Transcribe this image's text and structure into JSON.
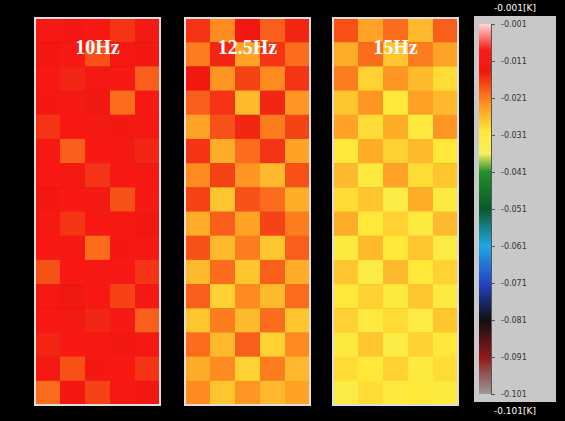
{
  "chart_data": {
    "type": "heatmap",
    "panels": [
      {
        "title": "10Hz",
        "cells": [
          [
            -0.012,
            -0.013,
            -0.011,
            -0.016,
            -0.012
          ],
          [
            -0.014,
            -0.011,
            -0.018,
            -0.012,
            -0.013
          ],
          [
            -0.011,
            -0.015,
            -0.012,
            -0.011,
            -0.019
          ],
          [
            -0.013,
            -0.012,
            -0.014,
            -0.02,
            -0.011
          ],
          [
            -0.016,
            -0.011,
            -0.012,
            -0.013,
            -0.012
          ],
          [
            -0.012,
            -0.019,
            -0.011,
            -0.012,
            -0.015
          ],
          [
            -0.011,
            -0.012,
            -0.016,
            -0.011,
            -0.012
          ],
          [
            -0.014,
            -0.011,
            -0.012,
            -0.018,
            -0.011
          ],
          [
            -0.012,
            -0.016,
            -0.011,
            -0.012,
            -0.014
          ],
          [
            -0.011,
            -0.012,
            -0.02,
            -0.013,
            -0.012
          ],
          [
            -0.018,
            -0.011,
            -0.012,
            -0.011,
            -0.016
          ],
          [
            -0.012,
            -0.014,
            -0.011,
            -0.017,
            -0.012
          ],
          [
            -0.011,
            -0.012,
            -0.015,
            -0.011,
            -0.019
          ],
          [
            -0.015,
            -0.011,
            -0.012,
            -0.014,
            -0.012
          ],
          [
            -0.012,
            -0.018,
            -0.013,
            -0.011,
            -0.016
          ],
          [
            -0.02,
            -0.013,
            -0.017,
            -0.012,
            -0.014
          ]
        ]
      },
      {
        "title": "12.5Hz",
        "cells": [
          [
            -0.016,
            -0.022,
            -0.014,
            -0.019,
            -0.015
          ],
          [
            -0.021,
            -0.015,
            -0.024,
            -0.016,
            -0.02
          ],
          [
            -0.014,
            -0.023,
            -0.017,
            -0.022,
            -0.016
          ],
          [
            -0.019,
            -0.016,
            -0.026,
            -0.015,
            -0.023
          ],
          [
            -0.024,
            -0.018,
            -0.015,
            -0.021,
            -0.017
          ],
          [
            -0.016,
            -0.025,
            -0.02,
            -0.016,
            -0.024
          ],
          [
            -0.022,
            -0.017,
            -0.023,
            -0.026,
            -0.018
          ],
          [
            -0.017,
            -0.027,
            -0.018,
            -0.02,
            -0.025
          ],
          [
            -0.025,
            -0.019,
            -0.024,
            -0.017,
            -0.021
          ],
          [
            -0.018,
            -0.026,
            -0.021,
            -0.027,
            -0.019
          ],
          [
            -0.026,
            -0.02,
            -0.027,
            -0.019,
            -0.025
          ],
          [
            -0.019,
            -0.028,
            -0.022,
            -0.026,
            -0.02
          ],
          [
            -0.027,
            -0.021,
            -0.026,
            -0.02,
            -0.027
          ],
          [
            -0.02,
            -0.026,
            -0.019,
            -0.028,
            -0.022
          ],
          [
            -0.025,
            -0.022,
            -0.028,
            -0.021,
            -0.026
          ],
          [
            -0.022,
            -0.027,
            -0.023,
            -0.026,
            -0.024
          ]
        ]
      },
      {
        "title": "15Hz",
        "cells": [
          [
            -0.018,
            -0.024,
            -0.02,
            -0.026,
            -0.019
          ],
          [
            -0.025,
            -0.02,
            -0.027,
            -0.021,
            -0.024
          ],
          [
            -0.021,
            -0.028,
            -0.023,
            -0.026,
            -0.029
          ],
          [
            -0.027,
            -0.023,
            -0.03,
            -0.024,
            -0.026
          ],
          [
            -0.024,
            -0.029,
            -0.025,
            -0.031,
            -0.023
          ],
          [
            -0.03,
            -0.025,
            -0.028,
            -0.026,
            -0.03
          ],
          [
            -0.026,
            -0.031,
            -0.024,
            -0.029,
            -0.027
          ],
          [
            -0.029,
            -0.027,
            -0.032,
            -0.025,
            -0.031
          ],
          [
            -0.025,
            -0.03,
            -0.028,
            -0.031,
            -0.026
          ],
          [
            -0.031,
            -0.026,
            -0.03,
            -0.027,
            -0.032
          ],
          [
            -0.027,
            -0.032,
            -0.026,
            -0.03,
            -0.028
          ],
          [
            -0.03,
            -0.028,
            -0.031,
            -0.027,
            -0.031
          ],
          [
            -0.028,
            -0.031,
            -0.029,
            -0.032,
            -0.027
          ],
          [
            -0.031,
            -0.027,
            -0.032,
            -0.028,
            -0.03
          ],
          [
            -0.029,
            -0.03,
            -0.028,
            -0.031,
            -0.029
          ],
          [
            -0.032,
            -0.029,
            -0.031,
            -0.03,
            -0.031
          ]
        ]
      }
    ],
    "colorbar": {
      "range": [
        -0.001,
        -0.101
      ],
      "ticks": [
        -0.001,
        -0.011,
        -0.021,
        -0.031,
        -0.041,
        -0.051,
        -0.061,
        -0.071,
        -0.081,
        -0.091,
        -0.101
      ],
      "max_label": "-0.001[K]",
      "min_label": "-0.101[K]"
    }
  }
}
